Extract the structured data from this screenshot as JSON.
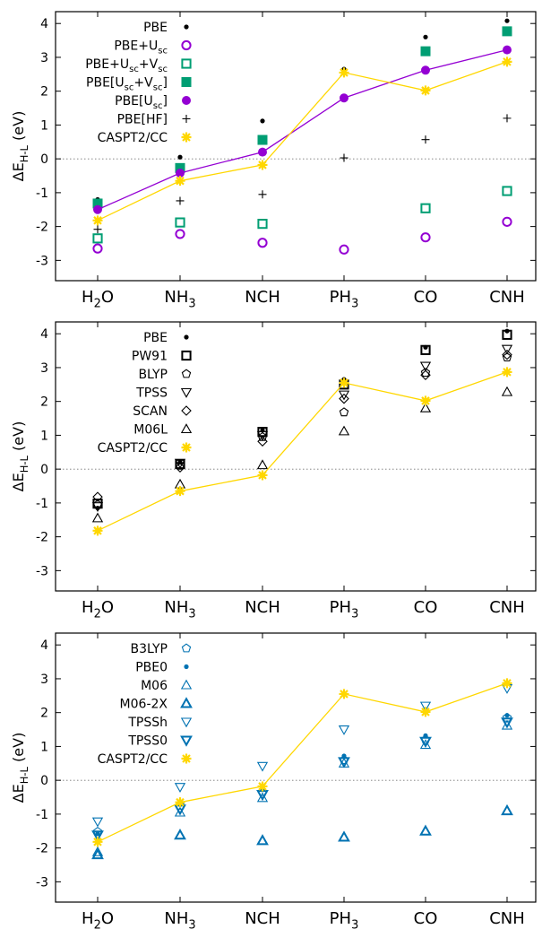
{
  "chart_data": [
    {
      "type": "scatter",
      "xlabel": "",
      "ylabel": "ΔE_{H-L} (eV)",
      "ylim": [
        -3.6,
        4.35
      ],
      "yticks": [
        -3,
        -2,
        -1,
        0,
        1,
        2,
        3,
        4
      ],
      "categories": [
        "H_2O",
        "NH_3",
        "NCH",
        "PH_3",
        "CO",
        "CNH"
      ],
      "zero_line": true,
      "legend_position": "top-left",
      "series": [
        {
          "name": "PBE",
          "marker": "dot",
          "color": "#000000",
          "line": false,
          "values": [
            -1.2,
            0.05,
            1.12,
            2.65,
            3.6,
            4.08
          ]
        },
        {
          "name": "PBE+U_{sc}",
          "marker": "circle-open",
          "color": "#9400d3",
          "line": false,
          "values": [
            -2.65,
            -2.22,
            -2.48,
            -2.68,
            -2.32,
            -1.86
          ]
        },
        {
          "name": "PBE+U_{sc}+V_{sc}",
          "marker": "square-open",
          "color": "#009e73",
          "line": false,
          "values": [
            -2.35,
            -1.88,
            -1.92,
            null,
            -1.46,
            -0.95
          ]
        },
        {
          "name": "PBE[U_{sc}+V_{sc}]",
          "marker": "square-filled",
          "color": "#009e73",
          "line": false,
          "values": [
            -1.32,
            -0.27,
            0.56,
            null,
            3.18,
            3.77
          ]
        },
        {
          "name": "PBE[U_{sc}]",
          "marker": "circle-filled",
          "color": "#9400d3",
          "line": true,
          "values": [
            -1.5,
            -0.42,
            0.2,
            1.8,
            2.62,
            3.22
          ]
        },
        {
          "name": "PBE[HF]",
          "marker": "plus",
          "color": "#000000",
          "line": false,
          "values": [
            -2.08,
            -1.24,
            -1.05,
            0.03,
            0.57,
            1.2
          ]
        },
        {
          "name": "CASPT2/CC",
          "marker": "star",
          "color": "#ffd700",
          "line": true,
          "values": [
            -1.82,
            -0.65,
            -0.18,
            2.55,
            2.02,
            2.87
          ]
        }
      ]
    },
    {
      "type": "scatter",
      "xlabel": "",
      "ylabel": "ΔE_{H-L} (eV)",
      "ylim": [
        -3.6,
        4.35
      ],
      "yticks": [
        -3,
        -2,
        -1,
        0,
        1,
        2,
        3,
        4
      ],
      "categories": [
        "H_2O",
        "NH_3",
        "NCH",
        "PH_3",
        "CO",
        "CNH"
      ],
      "zero_line": true,
      "legend_position": "top-left",
      "series": [
        {
          "name": "PBE",
          "marker": "dot",
          "color": "#000000",
          "line": false,
          "values": [
            -1.15,
            0.2,
            1.15,
            2.65,
            3.6,
            4.08
          ]
        },
        {
          "name": "PW91",
          "marker": "square-open",
          "color": "#000000",
          "line": false,
          "values": [
            -1.02,
            0.15,
            1.1,
            2.5,
            3.52,
            3.97
          ]
        },
        {
          "name": "BLYP",
          "marker": "pentagon-open",
          "color": "#000000",
          "line": false,
          "values": [
            -1.05,
            0.1,
            0.95,
            1.68,
            2.85,
            3.3
          ]
        },
        {
          "name": "TPSS",
          "marker": "triangle-down-open",
          "color": "#000000",
          "line": false,
          "values": [
            -1.1,
            0.18,
            1.0,
            2.2,
            3.05,
            3.55
          ]
        },
        {
          "name": "SCAN",
          "marker": "diamond-open",
          "color": "#000000",
          "line": false,
          "values": [
            -0.82,
            0.05,
            0.82,
            2.08,
            2.78,
            3.38
          ]
        },
        {
          "name": "M06L",
          "marker": "triangle-up-open",
          "color": "#000000",
          "line": false,
          "values": [
            -1.45,
            -0.45,
            0.12,
            1.12,
            1.8,
            2.28
          ]
        },
        {
          "name": "CASPT2/CC",
          "marker": "star",
          "color": "#ffd700",
          "line": true,
          "values": [
            -1.82,
            -0.65,
            -0.18,
            2.55,
            2.02,
            2.87
          ]
        }
      ]
    },
    {
      "type": "scatter",
      "xlabel": "",
      "ylabel": "ΔE_{H-L} (eV)",
      "ylim": [
        -3.6,
        4.35
      ],
      "yticks": [
        -3,
        -2,
        -1,
        0,
        1,
        2,
        3,
        4
      ],
      "categories": [
        "H_2O",
        "NH_3",
        "NCH",
        "PH_3",
        "CO",
        "CNH"
      ],
      "zero_line": true,
      "legend_position": "top-left",
      "series": [
        {
          "name": "B3LYP",
          "marker": "pentagon-open",
          "color": "#0072b2",
          "line": false,
          "values": [
            -1.52,
            -0.75,
            -0.35,
            0.6,
            1.2,
            1.85
          ]
        },
        {
          "name": "PBE0",
          "marker": "dot",
          "color": "#0072b2",
          "line": false,
          "values": [
            -1.58,
            -0.72,
            -0.28,
            0.72,
            1.32,
            1.92
          ]
        },
        {
          "name": "M06",
          "marker": "triangle-up-open",
          "color": "#0072b2",
          "line": false,
          "values": [
            -2.12,
            -0.95,
            -0.52,
            0.5,
            1.05,
            1.62
          ]
        },
        {
          "name": "M06-2X",
          "marker": "triangle-up-open-bold",
          "color": "#0072b2",
          "line": false,
          "values": [
            -2.2,
            -1.62,
            -1.78,
            -1.68,
            -1.5,
            -0.9
          ]
        },
        {
          "name": "TPSSh",
          "marker": "triangle-down-open",
          "color": "#0072b2",
          "line": false,
          "values": [
            -1.22,
            -0.2,
            0.42,
            1.5,
            2.2,
            2.72
          ]
        },
        {
          "name": "TPSS0",
          "marker": "triangle-down-open-bold",
          "color": "#0072b2",
          "line": false,
          "values": [
            -1.62,
            -0.85,
            -0.42,
            0.55,
            1.15,
            1.72
          ]
        },
        {
          "name": "CASPT2/CC",
          "marker": "star",
          "color": "#ffd700",
          "line": true,
          "values": [
            -1.82,
            -0.65,
            -0.18,
            2.55,
            2.02,
            2.87
          ]
        }
      ]
    }
  ]
}
